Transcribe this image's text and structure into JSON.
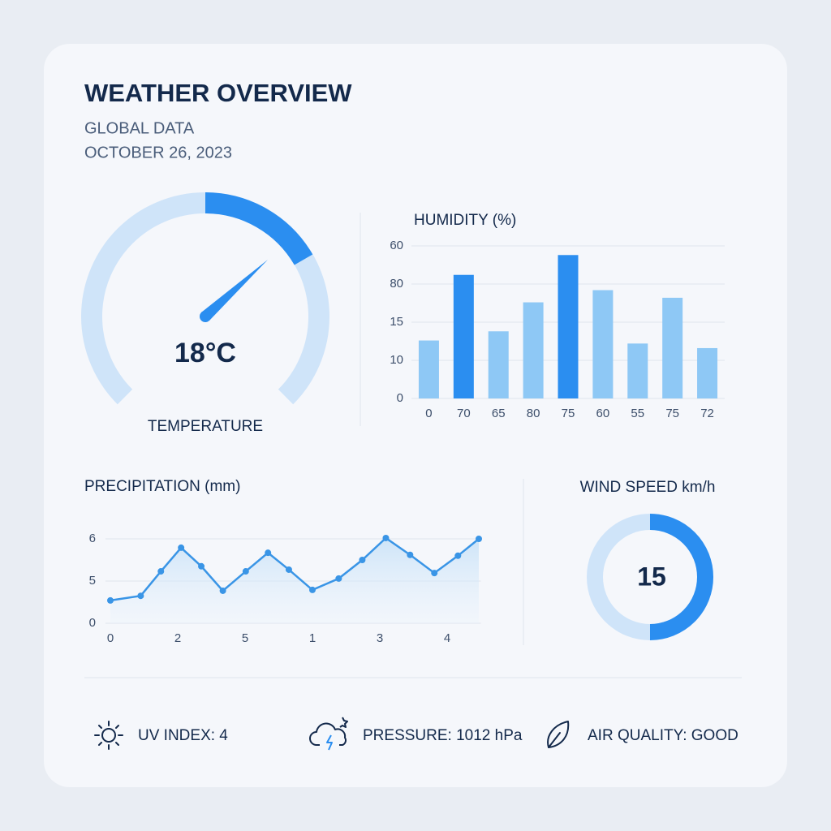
{
  "header": {
    "title": "WEATHER OVERVIEW",
    "subtitle": "GLOBAL DATA",
    "date": "OCTOBER 26, 2023"
  },
  "temperature": {
    "value": "18°C",
    "label": "TEMPERATURE"
  },
  "wind": {
    "label": "WIND SPEED km/h",
    "value": 15
  },
  "footer": {
    "uv": "UV INDEX: 4",
    "pressure": "PRESSURE: 1012 hPa",
    "air_quality": "AIR QUALITY: GOOD"
  },
  "chart_data": [
    {
      "type": "bar",
      "title": "HUMIDITY (%)",
      "categories": [
        "0",
        "70",
        "65",
        "80",
        "75",
        "60",
        "55",
        "75",
        "72"
      ],
      "values": [
        38,
        81,
        44,
        63,
        94,
        71,
        36,
        66,
        33
      ],
      "colors": [
        "#8ec8f5",
        "#2b8ef0",
        "#8ec8f5",
        "#8ec8f5",
        "#2b8ef0",
        "#8ec8f5",
        "#8ec8f5",
        "#8ec8f5",
        "#8ec8f5"
      ],
      "ylim": [
        0,
        100
      ],
      "yticks": [
        0,
        {
          "value": 25,
          "label": "10"
        },
        {
          "value": 50,
          "label": "15"
        },
        {
          "value": 75,
          "label": "80"
        },
        {
          "value": 100,
          "label": "60"
        }
      ],
      "grid": true
    },
    {
      "type": "line",
      "title": "PRECIPITATION (mm)",
      "x": [
        0,
        0.45,
        0.75,
        1.05,
        1.35,
        1.67,
        2.01,
        2.34,
        2.65,
        3.0,
        3.39,
        3.74,
        4.09,
        4.45,
        4.81,
        5.16,
        5.47
      ],
      "values": [
        0.54,
        0.65,
        1.23,
        1.79,
        1.35,
        0.77,
        1.23,
        1.67,
        1.27,
        0.79,
        1.06,
        1.5,
        2.02,
        1.62,
        1.19,
        1.6,
        2.0
      ],
      "color": "#3a95e6",
      "xlim": [
        0,
        5.5
      ],
      "xticks": [
        0,
        {
          "value": 1,
          "label": "2"
        },
        {
          "value": 2,
          "label": "5"
        },
        {
          "value": 3,
          "label": "1"
        },
        {
          "value": 4,
          "label": "3"
        },
        {
          "value": 5,
          "label": "4"
        }
      ],
      "ylim": [
        0,
        2
      ],
      "yticks": [
        0,
        {
          "value": 1,
          "label": "5"
        },
        {
          "value": 2,
          "label": "6"
        }
      ],
      "grid": true
    }
  ]
}
